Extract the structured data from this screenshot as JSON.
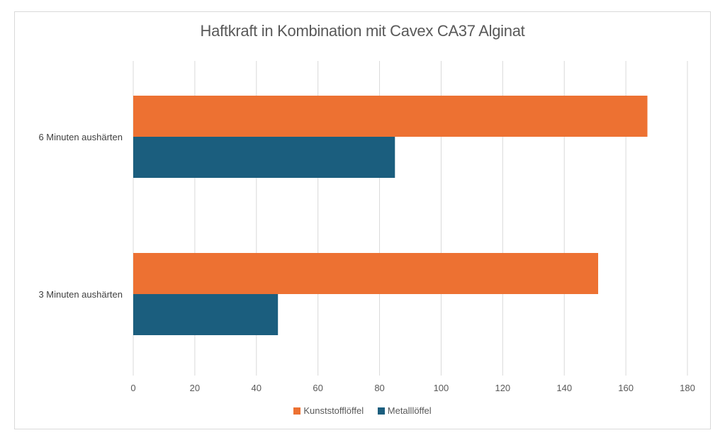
{
  "chart_data": {
    "type": "bar",
    "orientation": "horizontal",
    "title": "Haftkraft in Kombination mit Cavex CA37 Alginat",
    "categories": [
      "6 Minuten aushärten",
      "3 Minuten aushärten"
    ],
    "series": [
      {
        "name": "Kunststofflöffel",
        "color": "#ed7132",
        "values": [
          167,
          151
        ]
      },
      {
        "name": "Metalllöffel",
        "color": "#1b5e7e",
        "values": [
          85,
          47
        ]
      }
    ],
    "xlim": [
      0,
      180
    ],
    "xticks": [
      "0",
      "20",
      "40",
      "60",
      "80",
      "100",
      "120",
      "140",
      "160",
      "180"
    ],
    "grid": true,
    "legend_position": "bottom"
  }
}
